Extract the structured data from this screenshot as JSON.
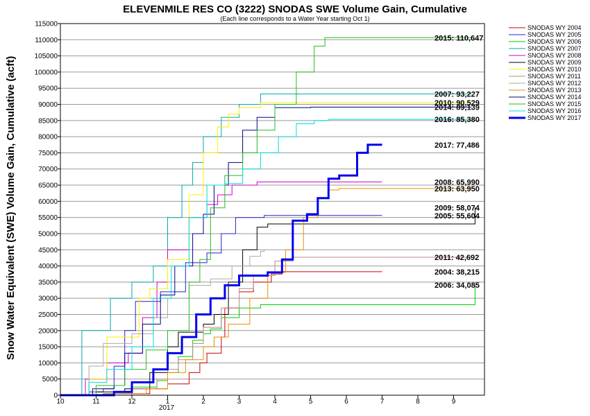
{
  "chart_data": {
    "type": "line",
    "title": "ELEVENMILE RES CO (3222) SNODAS SWE Volume Gain, Cumulative",
    "subtitle": "(Each line corresponds to a Water Year starting Oct 1)",
    "ylabel": "Snow Water Equivalent (SWE) Volume Gain, Cumulative (acft)",
    "xlabel": "",
    "x_ticks": [
      "10",
      "11",
      "12",
      "1",
      "2",
      "3",
      "4",
      "5",
      "6",
      "7",
      "8",
      "9"
    ],
    "x_year_label": "2017",
    "x_range_months": [
      0,
      11.95
    ],
    "ylim": [
      0,
      115000
    ],
    "y_ticks": [
      0,
      5000,
      10000,
      15000,
      20000,
      25000,
      30000,
      35000,
      40000,
      45000,
      50000,
      55000,
      60000,
      65000,
      70000,
      75000,
      80000,
      85000,
      90000,
      95000,
      100000,
      105000,
      110000,
      115000
    ],
    "grid": "horizontal",
    "legend_position": "right",
    "series": [
      {
        "name": "SNODAS WY 2004",
        "color": "#cc0000",
        "width": 1,
        "points": [
          [
            0,
            0
          ],
          [
            1.2,
            0
          ],
          [
            2,
            500
          ],
          [
            2.5,
            2000
          ],
          [
            3,
            3500
          ],
          [
            3.6,
            7000
          ],
          [
            3.9,
            10000
          ],
          [
            4.1,
            13000
          ],
          [
            4.5,
            18000
          ],
          [
            4.6,
            27000
          ],
          [
            5,
            32000
          ],
          [
            5.4,
            35000
          ],
          [
            5.9,
            37500
          ],
          [
            6.2,
            38215
          ],
          [
            9,
            38215
          ]
        ],
        "end_label": "2004: 38,215"
      },
      {
        "name": "SNODAS WY 2005",
        "color": "#2222cc",
        "width": 1,
        "points": [
          [
            0,
            0
          ],
          [
            0.8,
            1000
          ],
          [
            1.2,
            2000
          ],
          [
            1.5,
            9000
          ],
          [
            1.8,
            20000
          ],
          [
            2.1,
            29000
          ],
          [
            2.8,
            32000
          ],
          [
            3.5,
            41000
          ],
          [
            4.1,
            44000
          ],
          [
            4.5,
            50000
          ],
          [
            4.9,
            55000
          ],
          [
            5.7,
            55604
          ],
          [
            9,
            55604
          ]
        ],
        "end_label": "2005: 55,604"
      },
      {
        "name": "SNODAS WY 2006",
        "color": "#00cc00",
        "width": 1,
        "points": [
          [
            0,
            0
          ],
          [
            1.2,
            500
          ],
          [
            2,
            2500
          ],
          [
            2.7,
            4500
          ],
          [
            3,
            7000
          ],
          [
            3.3,
            12000
          ],
          [
            3.7,
            17000
          ],
          [
            4,
            19000
          ],
          [
            4.2,
            20500
          ],
          [
            4.5,
            24000
          ],
          [
            5,
            27000
          ],
          [
            5.6,
            28000
          ],
          [
            11.5,
            28000
          ],
          [
            11.6,
            34085
          ]
        ],
        "end_label": "2006: 34,085"
      },
      {
        "name": "SNODAS WY 2007",
        "color": "#00aaaa",
        "width": 1,
        "points": [
          [
            0,
            0
          ],
          [
            0.6,
            20000
          ],
          [
            1,
            20000
          ],
          [
            1.4,
            30000
          ],
          [
            2,
            35000
          ],
          [
            2.6,
            40000
          ],
          [
            3,
            55000
          ],
          [
            3.4,
            65000
          ],
          [
            3.7,
            72000
          ],
          [
            4,
            80000
          ],
          [
            4.5,
            86000
          ],
          [
            5,
            90000
          ],
          [
            5.6,
            93227
          ],
          [
            11.5,
            93227
          ]
        ],
        "end_label": "2007: 93,227"
      },
      {
        "name": "SNODAS WY 2008",
        "color": "#cc00cc",
        "width": 1,
        "points": [
          [
            0,
            0
          ],
          [
            0.7,
            5000
          ],
          [
            1.3,
            10000
          ],
          [
            1.9,
            13000
          ],
          [
            2.3,
            24000
          ],
          [
            2.7,
            35000
          ],
          [
            3,
            45000
          ],
          [
            3.6,
            55000
          ],
          [
            4.1,
            59000
          ],
          [
            4.4,
            62000
          ],
          [
            4.8,
            65000
          ],
          [
            5.5,
            65990
          ],
          [
            9,
            65990
          ]
        ],
        "end_label": "2008: 65,990"
      },
      {
        "name": "SNODAS WY 2009",
        "color": "#000000",
        "width": 1,
        "points": [
          [
            0,
            0
          ],
          [
            1,
            1000
          ],
          [
            1.8,
            2000
          ],
          [
            2.5,
            7000
          ],
          [
            3,
            15000
          ],
          [
            3.3,
            19500
          ],
          [
            4,
            22000
          ],
          [
            4.3,
            25000
          ],
          [
            4.7,
            35000
          ],
          [
            5.1,
            45000
          ],
          [
            5.5,
            52000
          ],
          [
            5.8,
            53000
          ],
          [
            11.5,
            53000
          ],
          [
            11.6,
            58074
          ]
        ],
        "end_label": "2009: 58,074"
      },
      {
        "name": "SNODAS WY 2010",
        "color": "#ffee00",
        "width": 1,
        "points": [
          [
            0,
            0
          ],
          [
            0.8,
            5000
          ],
          [
            1.3,
            18000
          ],
          [
            2.2,
            30000
          ],
          [
            2.5,
            33000
          ],
          [
            3,
            42000
          ],
          [
            3.6,
            62000
          ],
          [
            4,
            75000
          ],
          [
            4.4,
            83000
          ],
          [
            4.7,
            87000
          ],
          [
            5,
            89000
          ],
          [
            5.6,
            90529
          ],
          [
            11.5,
            90529
          ]
        ],
        "end_label": "2010: 90,529"
      },
      {
        "name": "SNODAS WY 2011",
        "color": "#bb8888",
        "width": 1,
        "points": [
          [
            0,
            0
          ],
          [
            1.2,
            500
          ],
          [
            2,
            2000
          ],
          [
            2.7,
            5000
          ],
          [
            3,
            8000
          ],
          [
            3.3,
            11000
          ],
          [
            3.7,
            16000
          ],
          [
            4,
            21000
          ],
          [
            4.5,
            27000
          ],
          [
            5,
            33000
          ],
          [
            5.4,
            37000
          ],
          [
            6,
            41500
          ],
          [
            6.5,
            42692
          ],
          [
            11.5,
            42692
          ]
        ],
        "end_label": "2011: 42,692"
      },
      {
        "name": "SNODAS WY 2012",
        "color": "#aaaaaa",
        "width": 1,
        "points": [
          [
            0,
            0
          ],
          [
            0.8,
            9000
          ],
          [
            1.2,
            16000
          ],
          [
            2,
            19000
          ],
          [
            2.6,
            24000
          ],
          [
            3,
            30000
          ],
          [
            3.6,
            34000
          ],
          [
            4.2,
            36000
          ],
          [
            4.8,
            40000
          ],
          [
            5.3,
            43000
          ],
          [
            5.6,
            44500
          ],
          [
            5.7,
            45000
          ]
        ],
        "end_label": ""
      },
      {
        "name": "SNODAS WY 2013",
        "color": "#e69000",
        "width": 1,
        "points": [
          [
            0,
            0
          ],
          [
            1.5,
            500
          ],
          [
            2.4,
            2000
          ],
          [
            3,
            7000
          ],
          [
            3.5,
            11000
          ],
          [
            4,
            15000
          ],
          [
            4.3,
            18000
          ],
          [
            4.7,
            22000
          ],
          [
            5.3,
            30000
          ],
          [
            5.8,
            38000
          ],
          [
            6.3,
            45000
          ],
          [
            6.8,
            55000
          ],
          [
            7.2,
            61000
          ],
          [
            7.5,
            63500
          ],
          [
            7.8,
            63950
          ],
          [
            11.5,
            63950
          ]
        ],
        "end_label": "2013: 63,950"
      },
      {
        "name": "SNODAS WY 2014",
        "color": "#000088",
        "width": 1,
        "points": [
          [
            0,
            0
          ],
          [
            0.9,
            2000
          ],
          [
            1.5,
            3000
          ],
          [
            1.8,
            13000
          ],
          [
            2.3,
            22000
          ],
          [
            2.8,
            31000
          ],
          [
            3.2,
            40000
          ],
          [
            3.7,
            50000
          ],
          [
            4,
            56000
          ],
          [
            4.3,
            65000
          ],
          [
            4.7,
            72000
          ],
          [
            5.1,
            82000
          ],
          [
            5.5,
            86000
          ],
          [
            6,
            89000
          ],
          [
            7,
            89139
          ],
          [
            11.5,
            89139
          ]
        ],
        "end_label": "2014: 89,139"
      },
      {
        "name": "SNODAS WY 2015",
        "color": "#22bb22",
        "width": 1,
        "points": [
          [
            0,
            0
          ],
          [
            1,
            3000
          ],
          [
            1.8,
            8000
          ],
          [
            2.4,
            14000
          ],
          [
            3,
            20000
          ],
          [
            3.6,
            35000
          ],
          [
            3.9,
            42000
          ],
          [
            4.2,
            58000
          ],
          [
            4.6,
            68000
          ],
          [
            5.1,
            75000
          ],
          [
            5.5,
            82000
          ],
          [
            6,
            90000
          ],
          [
            6.6,
            100000
          ],
          [
            7.1,
            108000
          ],
          [
            7.4,
            110647
          ],
          [
            11.5,
            110647
          ]
        ],
        "end_label": "2015: 110,647"
      },
      {
        "name": "SNODAS WY 2016",
        "color": "#00dddd",
        "width": 1,
        "points": [
          [
            0,
            0
          ],
          [
            0.8,
            4000
          ],
          [
            1.3,
            8000
          ],
          [
            2,
            15000
          ],
          [
            2.6,
            30000
          ],
          [
            3.1,
            40000
          ],
          [
            3.6,
            55000
          ],
          [
            4.1,
            65000
          ],
          [
            4.6,
            65500
          ],
          [
            5.1,
            70000
          ],
          [
            5.6,
            75000
          ],
          [
            6.1,
            80000
          ],
          [
            6.6,
            84000
          ],
          [
            7.1,
            85000
          ],
          [
            7.5,
            85380
          ],
          [
            11.5,
            85380
          ]
        ],
        "end_label": "2016: 85,380"
      },
      {
        "name": "SNODAS WY 2017",
        "color": "#0000ee",
        "width": 3,
        "points": [
          [
            0,
            0
          ],
          [
            1.5,
            1000
          ],
          [
            2,
            4000
          ],
          [
            2.6,
            8000
          ],
          [
            3,
            13000
          ],
          [
            3.4,
            18000
          ],
          [
            3.8,
            25000
          ],
          [
            4.2,
            30000
          ],
          [
            4.6,
            34000
          ],
          [
            5,
            37000
          ],
          [
            5.8,
            38000
          ],
          [
            6.2,
            42000
          ],
          [
            6.5,
            54000
          ],
          [
            6.9,
            56000
          ],
          [
            7.2,
            61000
          ],
          [
            7.5,
            67000
          ],
          [
            7.8,
            68000
          ],
          [
            8.3,
            75000
          ],
          [
            8.6,
            77486
          ],
          [
            9,
            77486
          ]
        ],
        "end_label": "2017: 77,486"
      }
    ]
  }
}
